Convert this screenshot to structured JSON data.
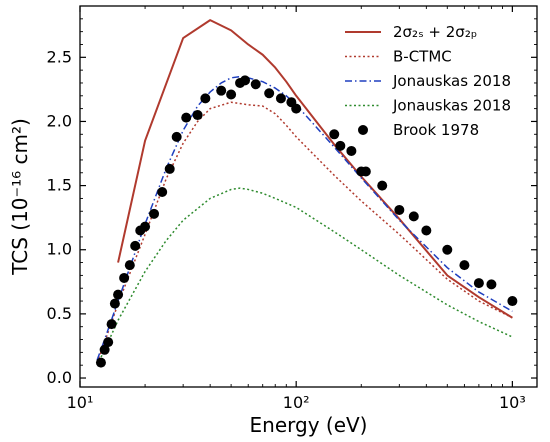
{
  "chart_data": {
    "type": "line",
    "xlabel": "Energy (eV)",
    "ylabel": "TCS (10⁻¹⁶ cm²)",
    "xscale": "log",
    "xlim": [
      10,
      1300
    ],
    "ylim": [
      -0.07,
      2.9
    ],
    "x_ticks": [
      10,
      100,
      1000
    ],
    "x_tick_labels": [
      "10¹",
      "10²",
      "10³"
    ],
    "y_ticks": [
      0.0,
      0.5,
      1.0,
      1.5,
      2.0,
      2.5
    ],
    "y_tick_labels": [
      "0.0",
      "0.5",
      "1.0",
      "1.5",
      "2.0",
      "2.5"
    ],
    "legend_position": "top-right",
    "series": [
      {
        "name": "2σ₂ₛ + 2σ₂ₚ",
        "style": "solid",
        "color": "#b03a2e",
        "x": [
          15,
          20,
          30,
          40,
          50,
          60,
          70,
          80,
          90,
          100,
          150,
          200,
          300,
          500,
          700,
          1000
        ],
        "y": [
          0.9,
          1.85,
          2.65,
          2.79,
          2.71,
          2.6,
          2.52,
          2.42,
          2.31,
          2.2,
          1.82,
          1.57,
          1.24,
          0.8,
          0.63,
          0.47
        ]
      },
      {
        "name": "B-CTMC",
        "style": "dotted",
        "color": "#b03a2e",
        "x": [
          12,
          13,
          15,
          20,
          25,
          30,
          35,
          40,
          50,
          60,
          70,
          80,
          90,
          100,
          150,
          200,
          300,
          500,
          700,
          1000
        ],
        "y": [
          0.12,
          0.28,
          0.58,
          1.12,
          1.55,
          1.83,
          2.0,
          2.1,
          2.15,
          2.13,
          2.12,
          2.06,
          1.97,
          1.88,
          1.58,
          1.38,
          1.12,
          0.77,
          0.6,
          0.47
        ]
      },
      {
        "name": "Jonauskas 2018",
        "style": "dashdot",
        "color": "#1f3fbf",
        "x": [
          12,
          13,
          15,
          20,
          25,
          30,
          35,
          40,
          45,
          50,
          55,
          60,
          70,
          80,
          90,
          100,
          150,
          200,
          300,
          500,
          700,
          1000
        ],
        "y": [
          0.14,
          0.3,
          0.6,
          1.2,
          1.63,
          1.93,
          2.12,
          2.23,
          2.3,
          2.34,
          2.35,
          2.34,
          2.31,
          2.26,
          2.2,
          2.13,
          1.8,
          1.56,
          1.23,
          0.86,
          0.67,
          0.52
        ]
      },
      {
        "name": "Jonauskas 2018",
        "style": "dotted",
        "color": "#2e8b2e",
        "x": [
          12,
          13,
          15,
          20,
          25,
          30,
          40,
          50,
          55,
          60,
          70,
          80,
          100,
          150,
          200,
          300,
          500,
          700,
          1000
        ],
        "y": [
          0.1,
          0.22,
          0.45,
          0.83,
          1.07,
          1.23,
          1.4,
          1.47,
          1.48,
          1.47,
          1.44,
          1.4,
          1.33,
          1.14,
          1.0,
          0.8,
          0.57,
          0.44,
          0.32
        ]
      },
      {
        "name": "Brook 1978",
        "style": "markers",
        "color": "#000000",
        "x": [
          12.5,
          13,
          13.5,
          14,
          14.5,
          15,
          16,
          17,
          18,
          19,
          20,
          22,
          24,
          26,
          28,
          31,
          35,
          38,
          45,
          50,
          55,
          58,
          65,
          75,
          85,
          95,
          100,
          150,
          160,
          180,
          200,
          210,
          250,
          300,
          350,
          400,
          500,
          600,
          700,
          800,
          1000
        ],
        "y": [
          0.12,
          0.22,
          0.28,
          0.42,
          0.58,
          0.65,
          0.78,
          0.88,
          1.03,
          1.15,
          1.18,
          1.28,
          1.45,
          1.63,
          1.88,
          2.03,
          2.05,
          2.18,
          2.24,
          2.21,
          2.3,
          2.32,
          2.29,
          2.22,
          2.18,
          2.15,
          2.1,
          1.9,
          1.81,
          1.77,
          1.61,
          1.61,
          1.5,
          1.31,
          1.26,
          1.15,
          1.0,
          0.88,
          0.74,
          0.73,
          0.6
        ]
      }
    ]
  }
}
